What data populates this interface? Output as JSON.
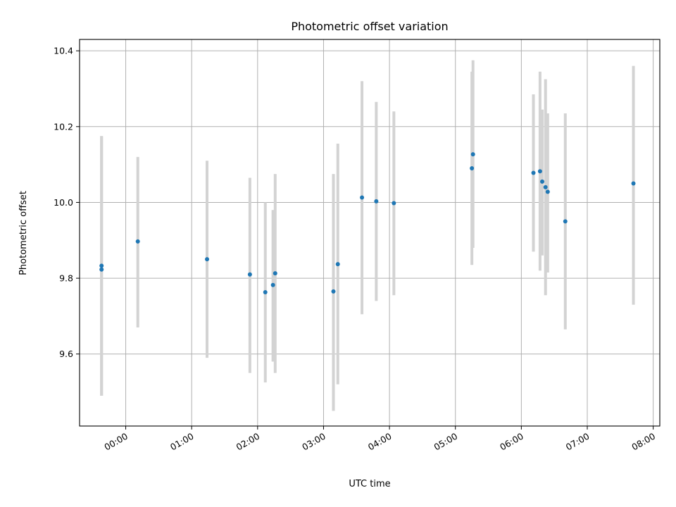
{
  "chart_data": {
    "type": "scatter",
    "title": "Photometric offset variation",
    "xlabel": "UTC time",
    "ylabel": "Photometric offset",
    "x_ticks": [
      "00:00",
      "01:00",
      "02:00",
      "03:00",
      "04:00",
      "05:00",
      "06:00",
      "07:00",
      "08:00"
    ],
    "y_ticks": [
      "9.6",
      "9.8",
      "10.0",
      "10.2",
      "10.4"
    ],
    "xlim": [
      "23:18",
      "08:06"
    ],
    "ylim": [
      9.41,
      10.43
    ],
    "grid": true,
    "colors": {
      "points": "#1f77b4",
      "errorbars": "#d3d3d3"
    },
    "points": [
      {
        "time": "23:38",
        "y": 9.833,
        "lo": 9.49,
        "hi": 10.175
      },
      {
        "time": "23:38",
        "y": 9.823,
        "lo": 9.49,
        "hi": 10.175
      },
      {
        "time": "00:11",
        "y": 9.897,
        "lo": 9.67,
        "hi": 10.12
      },
      {
        "time": "01:14",
        "y": 9.85,
        "lo": 9.59,
        "hi": 10.11
      },
      {
        "time": "01:53",
        "y": 9.81,
        "lo": 9.55,
        "hi": 10.065
      },
      {
        "time": "02:07",
        "y": 9.763,
        "lo": 9.525,
        "hi": 10.0
      },
      {
        "time": "02:14",
        "y": 9.782,
        "lo": 9.58,
        "hi": 9.98
      },
      {
        "time": "02:16",
        "y": 9.813,
        "lo": 9.55,
        "hi": 10.075
      },
      {
        "time": "03:09",
        "y": 9.765,
        "lo": 9.45,
        "hi": 10.075
      },
      {
        "time": "03:13",
        "y": 9.837,
        "lo": 9.52,
        "hi": 10.155
      },
      {
        "time": "03:35",
        "y": 10.013,
        "lo": 9.705,
        "hi": 10.32
      },
      {
        "time": "03:48",
        "y": 10.003,
        "lo": 9.74,
        "hi": 10.265
      },
      {
        "time": "04:04",
        "y": 9.998,
        "lo": 9.755,
        "hi": 10.24
      },
      {
        "time": "05:15",
        "y": 10.09,
        "lo": 9.835,
        "hi": 10.345
      },
      {
        "time": "05:16",
        "y": 10.127,
        "lo": 9.88,
        "hi": 10.375
      },
      {
        "time": "06:11",
        "y": 10.078,
        "lo": 9.87,
        "hi": 10.285
      },
      {
        "time": "06:17",
        "y": 10.082,
        "lo": 9.82,
        "hi": 10.345
      },
      {
        "time": "06:19",
        "y": 10.055,
        "lo": 9.86,
        "hi": 10.245
      },
      {
        "time": "06:22",
        "y": 10.04,
        "lo": 9.755,
        "hi": 10.325
      },
      {
        "time": "06:24",
        "y": 10.028,
        "lo": 9.815,
        "hi": 10.235
      },
      {
        "time": "06:40",
        "y": 9.95,
        "lo": 9.665,
        "hi": 10.235
      },
      {
        "time": "07:42",
        "y": 10.05,
        "lo": 9.73,
        "hi": 10.36
      }
    ]
  }
}
